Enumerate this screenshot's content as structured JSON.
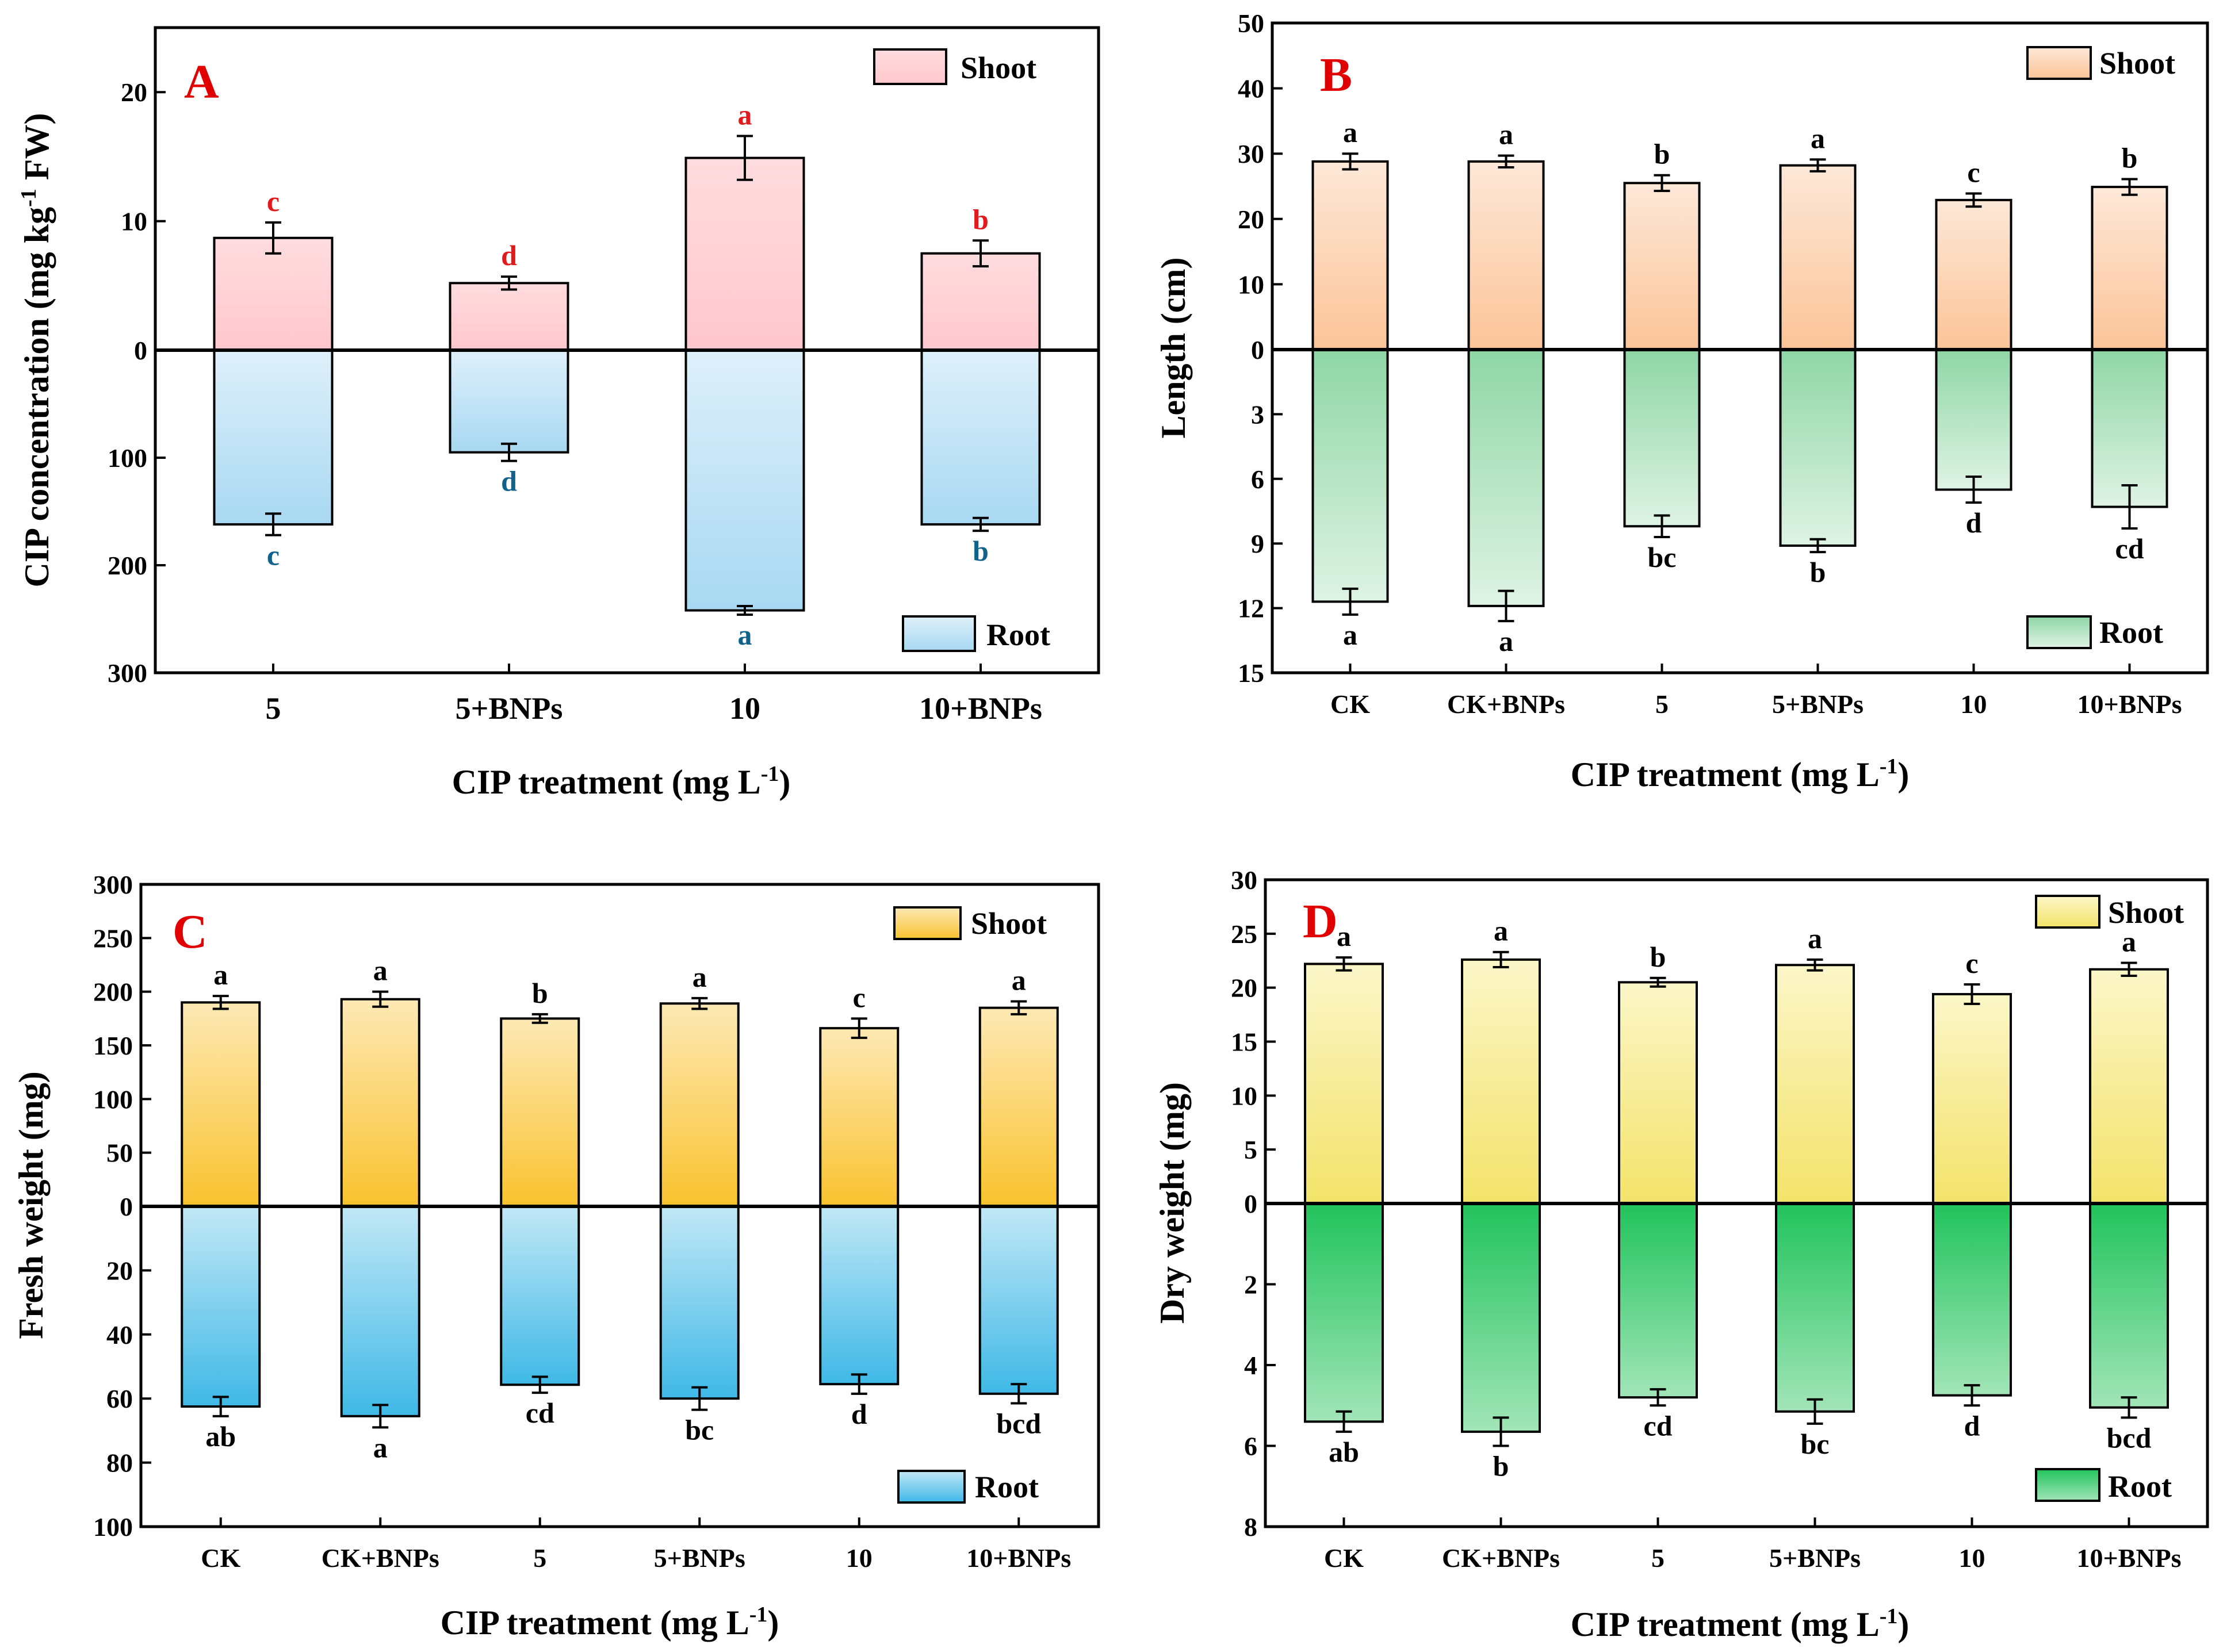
{
  "colors": {
    "A_shoot": "#ffc7cd",
    "A_shoot_light": "#ffdcdf",
    "A_root": "#a8d8f2",
    "A_root_light": "#dff0fa",
    "B_shoot": "#fbc498",
    "B_shoot_light": "#fde8d8",
    "B_root": "#8fd6a5",
    "B_root_light": "#dff3e5",
    "C_shoot": "#f9c22e",
    "C_shoot_light": "#fde9b5",
    "C_root": "#3fb8e6",
    "C_root_light": "#c2e8f6",
    "D_shoot": "#f3e36a",
    "D_shoot_light": "#fbf6c8",
    "D_root": "#21c35c",
    "D_root_light": "#a2e5b8",
    "label_red": "#e31a1c",
    "label_teal": "#12638c",
    "label_black": "#000000"
  },
  "chart_data": [
    {
      "id": "A",
      "type": "bar",
      "panel_letter": "A",
      "categories": [
        "5",
        "5+BNPs",
        "10",
        "10+BNPs"
      ],
      "ylabel": "CIP concentration (mg kg",
      "ylabel_sup": "-1",
      "ylabel_tail": " FW)",
      "xlabel": "CIP treatment (mg L",
      "xlabel_sup": "-1",
      "xlabel_tail": ")",
      "top": {
        "range": [
          0,
          25
        ],
        "ticks": [
          0,
          10,
          20
        ],
        "tick_labels": [
          "0",
          "10",
          "20"
        ]
      },
      "bottom": {
        "range": [
          0,
          300
        ],
        "ticks": [
          100,
          200,
          300
        ],
        "tick_labels": [
          "100",
          "200",
          "300"
        ]
      },
      "series": [
        {
          "name": "Shoot",
          "values": [
            8.7,
            5.2,
            14.9,
            7.5
          ],
          "errors": [
            1.2,
            0.5,
            1.7,
            1.0
          ],
          "labels": [
            "c",
            "d",
            "a",
            "b"
          ],
          "label_color": "label_red"
        },
        {
          "name": "Root",
          "values": [
            162,
            95,
            242,
            162
          ],
          "errors": [
            10,
            8,
            4,
            6
          ],
          "labels": [
            "c",
            "d",
            "a",
            "b"
          ],
          "label_color": "label_teal"
        }
      ],
      "legend": {
        "shoot": "Shoot",
        "root": "Root"
      }
    },
    {
      "id": "B",
      "type": "bar",
      "panel_letter": "B",
      "categories": [
        "CK",
        "CK+BNPs",
        "5",
        "5+BNPs",
        "10",
        "10+BNPs"
      ],
      "ylabel": "Length (cm)",
      "xlabel": "CIP treatment (mg L",
      "xlabel_sup": "-1",
      "xlabel_tail": ")",
      "top": {
        "range": [
          0,
          50
        ],
        "ticks": [
          0,
          10,
          20,
          30,
          40,
          50
        ],
        "tick_labels": [
          "0",
          "10",
          "20",
          "30",
          "40",
          "50"
        ]
      },
      "bottom": {
        "range": [
          0,
          15
        ],
        "ticks": [
          3,
          6,
          9,
          12,
          15
        ],
        "tick_labels": [
          "3",
          "6",
          "9",
          "12",
          "15"
        ]
      },
      "series": [
        {
          "name": "Shoot",
          "values": [
            28.8,
            28.8,
            25.5,
            28.2,
            22.9,
            24.9
          ],
          "errors": [
            1.2,
            0.9,
            1.2,
            0.9,
            1.0,
            1.2
          ],
          "labels": [
            "a",
            "a",
            "b",
            "a",
            "c",
            "b"
          ],
          "label_color": "label_black"
        },
        {
          "name": "Root",
          "values": [
            11.7,
            11.9,
            8.2,
            9.1,
            6.5,
            7.3
          ],
          "errors": [
            0.6,
            0.7,
            0.5,
            0.3,
            0.6,
            1.0
          ],
          "labels": [
            "a",
            "a",
            "bc",
            "b",
            "d",
            "cd"
          ],
          "label_color": "label_black"
        }
      ],
      "legend": {
        "shoot": "Shoot",
        "root": "Root"
      }
    },
    {
      "id": "C",
      "type": "bar",
      "panel_letter": "C",
      "categories": [
        "CK",
        "CK+BNPs",
        "5",
        "5+BNPs",
        "10",
        "10+BNPs"
      ],
      "ylabel": "Fresh weight (mg)",
      "xlabel": "CIP treatment (mg L",
      "xlabel_sup": "-1",
      "xlabel_tail": ")",
      "top": {
        "range": [
          0,
          300
        ],
        "ticks": [
          0,
          50,
          100,
          150,
          200,
          250,
          300
        ],
        "tick_labels": [
          "0",
          "50",
          "100",
          "150",
          "200",
          "250",
          "300"
        ]
      },
      "bottom": {
        "range": [
          0,
          100
        ],
        "ticks": [
          20,
          40,
          60,
          80,
          100
        ],
        "tick_labels": [
          "20",
          "40",
          "60",
          "80",
          "100"
        ]
      },
      "series": [
        {
          "name": "Shoot",
          "values": [
            190,
            193,
            175,
            189,
            166,
            185
          ],
          "errors": [
            6,
            7,
            4,
            5,
            9,
            6
          ],
          "labels": [
            "a",
            "a",
            "b",
            "a",
            "c",
            "a"
          ],
          "label_color": "label_black"
        },
        {
          "name": "Root",
          "values": [
            62.5,
            65.5,
            55.7,
            60,
            55.5,
            58.5
          ],
          "errors": [
            3,
            3.5,
            2.5,
            3.5,
            3,
            3
          ],
          "labels": [
            "ab",
            "a",
            "cd",
            "bc",
            "d",
            "bcd"
          ],
          "label_color": "label_black"
        }
      ],
      "legend": {
        "shoot": "Shoot",
        "root": "Root"
      }
    },
    {
      "id": "D",
      "type": "bar",
      "panel_letter": "D",
      "categories": [
        "CK",
        "CK+BNPs",
        "5",
        "5+BNPs",
        "10",
        "10+BNPs"
      ],
      "ylabel": "Dry weight (mg)",
      "xlabel": "CIP treatment (mg L",
      "xlabel_sup": "-1",
      "xlabel_tail": ")",
      "top": {
        "range": [
          0,
          30
        ],
        "ticks": [
          0,
          5,
          10,
          15,
          20,
          25,
          30
        ],
        "tick_labels": [
          "0",
          "5",
          "10",
          "15",
          "20",
          "25",
          "30"
        ]
      },
      "bottom": {
        "range": [
          0,
          8
        ],
        "ticks": [
          2,
          4,
          6,
          8
        ],
        "tick_labels": [
          "2",
          "4",
          "6",
          "8"
        ]
      },
      "series": [
        {
          "name": "Shoot",
          "values": [
            22.2,
            22.6,
            20.5,
            22.1,
            19.4,
            21.7
          ],
          "errors": [
            0.6,
            0.7,
            0.4,
            0.5,
            0.9,
            0.6
          ],
          "labels": [
            "a",
            "a",
            "b",
            "a",
            "c",
            "a"
          ],
          "label_color": "label_black"
        },
        {
          "name": "Root",
          "values": [
            5.4,
            5.65,
            4.8,
            5.15,
            4.75,
            5.05
          ],
          "errors": [
            0.25,
            0.35,
            0.2,
            0.3,
            0.25,
            0.25
          ],
          "labels": [
            "ab",
            "b",
            "cd",
            "bc",
            "d",
            "bcd"
          ],
          "label_color": "label_black"
        }
      ],
      "legend": {
        "shoot": "Shoot",
        "root": "Root"
      }
    }
  ]
}
